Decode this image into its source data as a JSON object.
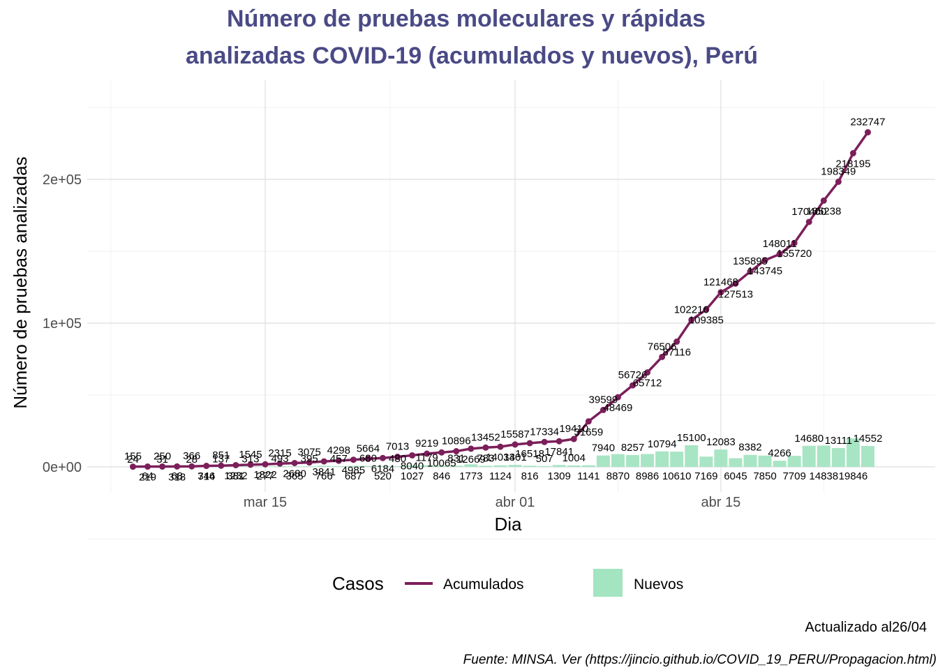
{
  "chart_data": {
    "type": "line",
    "title_line1": "Número de pruebas moleculares y rápidas",
    "title_line2": "analizadas COVID-19 (acumulados y nuevos), Perú",
    "xlabel": "Dia",
    "ylabel": "Número de pruebas analizadas",
    "x_ticks": [
      {
        "date": "2020-03-15",
        "label": "mar 15"
      },
      {
        "date": "2020-04-01",
        "label": "abr 01"
      },
      {
        "date": "2020-04-15",
        "label": "abr 15"
      }
    ],
    "y_ticks": [
      {
        "value": 0,
        "label": "0e+00"
      },
      {
        "value": 100000,
        "label": "1e+05"
      },
      {
        "value": 200000,
        "label": "2e+05"
      }
    ],
    "grid": true,
    "legend_position": "bottom",
    "legend_title": "Casos",
    "colors": {
      "acumulados": "#7b1f5a",
      "nuevos": "#a3e4c1"
    },
    "series": [
      {
        "name": "Acumulados",
        "type": "line",
        "x": [
          "2020-03-06",
          "2020-03-07",
          "2020-03-08",
          "2020-03-09",
          "2020-03-10",
          "2020-03-11",
          "2020-03-12",
          "2020-03-13",
          "2020-03-14",
          "2020-03-15",
          "2020-03-16",
          "2020-03-17",
          "2020-03-18",
          "2020-03-19",
          "2020-03-20",
          "2020-03-21",
          "2020-03-22",
          "2020-03-23",
          "2020-03-24",
          "2020-03-25",
          "2020-03-26",
          "2020-03-27",
          "2020-03-28",
          "2020-03-29",
          "2020-03-30",
          "2020-03-31",
          "2020-04-01",
          "2020-04-02",
          "2020-04-03",
          "2020-04-04",
          "2020-04-05",
          "2020-04-06",
          "2020-04-07",
          "2020-04-08",
          "2020-04-09",
          "2020-04-10",
          "2020-04-11",
          "2020-04-12",
          "2020-04-13",
          "2020-04-14",
          "2020-04-15",
          "2020-04-16",
          "2020-04-17",
          "2020-04-18",
          "2020-04-19",
          "2020-04-20",
          "2020-04-21",
          "2020-04-22",
          "2020-04-23",
          "2020-04-24",
          "2020-04-25",
          "2020-04-26"
        ],
        "values": [
          155,
          219,
          250,
          318,
          366,
          714,
          851,
          1232,
          1545,
          1822,
          2315,
          2680,
          3075,
          3841,
          4298,
          4985,
          5664,
          6184,
          7013,
          8040,
          9219,
          10065,
          10896,
          12669,
          13452,
          14033,
          15587,
          16518,
          17334,
          17841,
          19410,
          31659,
          39599,
          48469,
          56726,
          65712,
          76506,
          87116,
          102216,
          109385,
          121468,
          127513,
          135895,
          143745,
          148011,
          155720,
          170400,
          185238,
          198349,
          218195,
          232747,
          232747
        ],
        "labels": [
          "155",
          "219",
          "250",
          "318",
          "366",
          "714",
          "851",
          "1232",
          "1545",
          "1822",
          "2315",
          "2680",
          "3075",
          "3841",
          "4298",
          "4985",
          "5664",
          "6184",
          "7013",
          "8040",
          "9219",
          "10065",
          "10896",
          "12669",
          "13452",
          "14033",
          "15587",
          "16518",
          "17334",
          "17841",
          "19410",
          "31659",
          "39599",
          "48469",
          "56726",
          "65712",
          "76506",
          "87116",
          "102216",
          "109385",
          "121468",
          "127513",
          "135895",
          "143745",
          "148011",
          "155720",
          "170400",
          "185238",
          "198349",
          "218195",
          "232747",
          ""
        ]
      },
      {
        "name": "Nuevos",
        "type": "bar",
        "x": [
          "2020-03-06",
          "2020-03-07",
          "2020-03-08",
          "2020-03-09",
          "2020-03-10",
          "2020-03-11",
          "2020-03-12",
          "2020-03-13",
          "2020-03-14",
          "2020-03-15",
          "2020-03-16",
          "2020-03-17",
          "2020-03-18",
          "2020-03-19",
          "2020-03-20",
          "2020-03-21",
          "2020-03-22",
          "2020-03-23",
          "2020-03-24",
          "2020-03-25",
          "2020-03-26",
          "2020-03-27",
          "2020-03-28",
          "2020-03-29",
          "2020-03-30",
          "2020-03-31",
          "2020-04-01",
          "2020-04-02",
          "2020-04-03",
          "2020-04-04",
          "2020-04-05",
          "2020-04-06",
          "2020-04-07",
          "2020-04-08",
          "2020-04-09",
          "2020-04-10",
          "2020-04-11",
          "2020-04-12",
          "2020-04-13",
          "2020-04-14",
          "2020-04-15",
          "2020-04-16",
          "2020-04-17",
          "2020-04-18",
          "2020-04-19",
          "2020-04-20",
          "2020-04-21",
          "2020-04-22",
          "2020-04-23",
          "2020-04-24",
          "2020-04-25",
          "2020-04-26"
        ],
        "values": [
          24,
          64,
          31,
          68,
          28,
          346,
          137,
          381,
          313,
          277,
          493,
          365,
          395,
          766,
          457,
          687,
          680,
          520,
          480,
          1027,
          1179,
          846,
          831,
          1773,
          783,
          1124,
          1401,
          816,
          507,
          1309,
          1004,
          1141,
          7940,
          8870,
          8257,
          8986,
          10794,
          10610,
          15100,
          7169,
          12083,
          6045,
          8382,
          7850,
          4266,
          7709,
          14680,
          14838,
          13111,
          19846,
          14552,
          0
        ],
        "labels": [
          "24",
          "64",
          "31",
          "68",
          "28",
          "346",
          "137",
          "381",
          "313",
          "277",
          "493",
          "365",
          "395",
          "766",
          "457",
          "687",
          "680",
          "520",
          "480",
          "1027",
          "1179",
          "846",
          "831",
          "1773",
          "783",
          "1124",
          "1401",
          "816",
          "507",
          "1309",
          "1004",
          "1141",
          "7940",
          "8870",
          "8257",
          "8986",
          "10794",
          "10610",
          "15100",
          "7169",
          "12083",
          "6045",
          "8382",
          "7850",
          "4266",
          "7709",
          "14680",
          "14838",
          "13111",
          "19846",
          "14552",
          ""
        ]
      }
    ],
    "caption_updated": "Actualizado al26/04",
    "caption_source": "Fuente: MINSA. Ver (https://jincio.github.io/COVID_19_PERU/Propagacion.html)"
  }
}
